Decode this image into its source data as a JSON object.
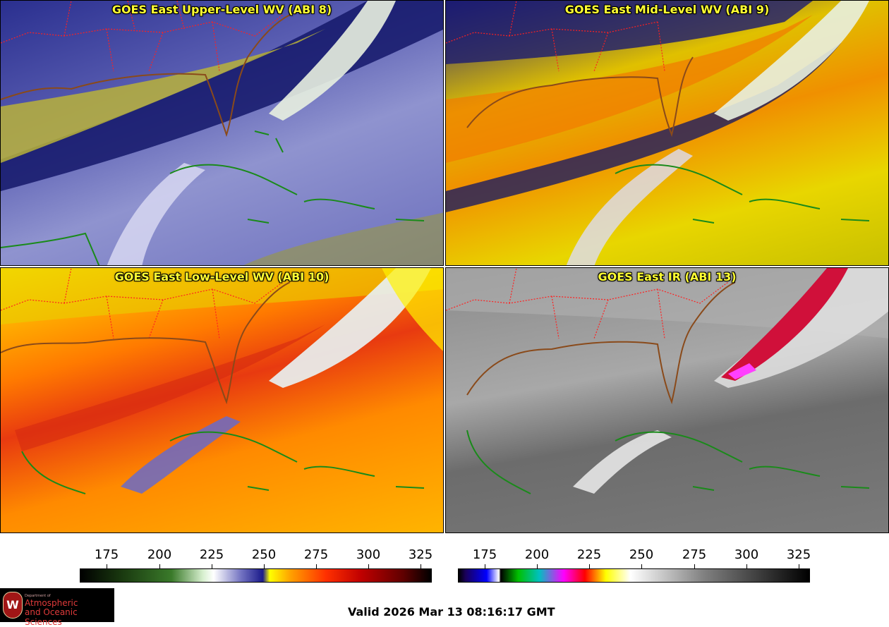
{
  "panels": [
    {
      "title": "GOES East Upper-Level WV (ABI 8)"
    },
    {
      "title": "GOES East Mid-Level WV (ABI 9)"
    },
    {
      "title": "GOES East Low-Level WV (ABI 10)"
    },
    {
      "title": "GOES East IR (ABI 13)"
    }
  ],
  "colorbars": {
    "wv": {
      "ticks": [
        "175",
        "200",
        "225",
        "250",
        "275",
        "300",
        "325"
      ]
    },
    "ir": {
      "ticks": [
        "175",
        "200",
        "225",
        "250",
        "275",
        "300",
        "325"
      ]
    }
  },
  "logo": {
    "line1": "Department of",
    "line2": "Atmospheric",
    "line3": "and Oceanic Sciences",
    "seal": "W"
  },
  "valid_time": "Valid 2026 Mar 13 08:16:17 GMT",
  "colors": {
    "title": "#ffff33",
    "state_borders": "#ff2020",
    "coastlines": "#1a8a1a"
  }
}
